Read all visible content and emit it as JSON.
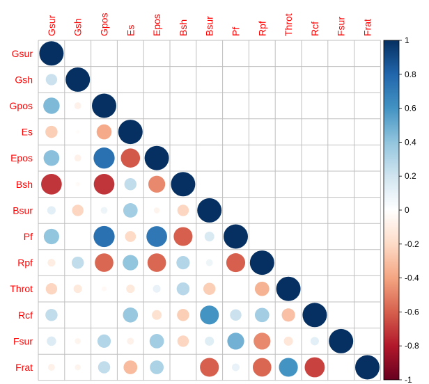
{
  "chart_data": {
    "type": "heatmap",
    "subtype": "correlation-circle-lower",
    "variables": [
      "Gsur",
      "Gsh",
      "Gpos",
      "Es",
      "Epos",
      "Bsh",
      "Bsur",
      "Pf",
      "Rpf",
      "Throt",
      "Rcf",
      "Fsur",
      "Frat"
    ],
    "matrix": [
      [
        1.0,
        null,
        null,
        null,
        null,
        null,
        null,
        null,
        null,
        null,
        null,
        null,
        null
      ],
      [
        0.22,
        1.0,
        null,
        null,
        null,
        null,
        null,
        null,
        null,
        null,
        null,
        null,
        null
      ],
      [
        0.45,
        -0.08,
        1.0,
        null,
        null,
        null,
        null,
        null,
        null,
        null,
        null,
        null,
        null
      ],
      [
        -0.25,
        -0.02,
        -0.38,
        1.0,
        null,
        null,
        null,
        null,
        null,
        null,
        null,
        null,
        null
      ],
      [
        0.42,
        -0.08,
        0.75,
        -0.62,
        1.0,
        null,
        null,
        null,
        null,
        null,
        null,
        null,
        null
      ],
      [
        -0.72,
        -0.03,
        -0.72,
        0.25,
        -0.48,
        1.0,
        null,
        null,
        null,
        null,
        null,
        null,
        null
      ],
      [
        0.12,
        -0.22,
        0.08,
        0.35,
        -0.06,
        -0.22,
        1.0,
        null,
        null,
        null,
        null,
        null,
        null
      ],
      [
        0.4,
        0.0,
        0.75,
        -0.2,
        0.72,
        -0.6,
        0.16,
        1.0,
        null,
        null,
        null,
        null,
        null
      ],
      [
        -0.1,
        0.25,
        -0.58,
        0.4,
        -0.58,
        0.3,
        0.08,
        -0.6,
        1.0,
        null,
        null,
        null,
        null
      ],
      [
        -0.22,
        -0.12,
        -0.04,
        -0.12,
        0.1,
        0.28,
        -0.25,
        0.0,
        -0.35,
        1.0,
        null,
        null,
        null
      ],
      [
        0.25,
        0.0,
        0.0,
        0.38,
        -0.16,
        -0.25,
        0.6,
        0.22,
        0.35,
        -0.3,
        1.0,
        null,
        null
      ],
      [
        0.15,
        -0.06,
        0.3,
        -0.08,
        0.35,
        -0.22,
        0.14,
        0.48,
        -0.48,
        -0.14,
        0.12,
        1.0,
        null
      ],
      [
        -0.08,
        -0.06,
        0.25,
        -0.32,
        0.32,
        0.0,
        -0.6,
        0.1,
        -0.58,
        0.6,
        -0.68,
        0.0,
        1.0
      ]
    ],
    "colorbar": {
      "range": [
        -1,
        1
      ],
      "ticks": [
        "1",
        "0.8",
        "0.6",
        "0.4",
        "0.2",
        "0",
        "-0.2",
        "-0.4",
        "-0.6",
        "-0.8",
        "-1"
      ],
      "stops": [
        "#67001f",
        "#b2182b",
        "#d6604d",
        "#f4a582",
        "#fddbc7",
        "#ffffff",
        "#d1e5f0",
        "#92c5de",
        "#4393c3",
        "#2166ac",
        "#053061"
      ]
    },
    "label_color": "#ff0000",
    "grid": true,
    "legend_position": "right"
  }
}
